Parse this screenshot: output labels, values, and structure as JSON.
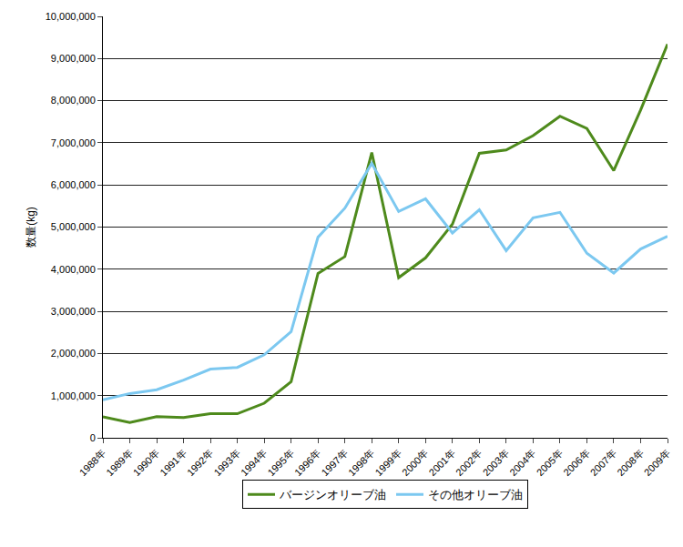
{
  "chart_data": {
    "type": "line",
    "y_label": "数量(kg)",
    "categories": [
      "1988年",
      "1989年",
      "1990年",
      "1991年",
      "1992年",
      "1993年",
      "1994年",
      "1995年",
      "1996年",
      "1997年",
      "1998年",
      "1999年",
      "2000年",
      "2001年",
      "2002年",
      "2003年",
      "2004年",
      "2005年",
      "2006年",
      "2007年",
      "2008年",
      "2009年"
    ],
    "series": [
      {
        "name": "バージンオリーブ油",
        "color": "#4e8a1c",
        "values": [
          500000,
          360000,
          500000,
          480000,
          570000,
          570000,
          820000,
          1330000,
          3900000,
          4300000,
          6770000,
          3800000,
          4270000,
          5070000,
          6750000,
          6830000,
          7170000,
          7630000,
          7340000,
          6340000,
          7780000,
          9340000
        ]
      },
      {
        "name": "その他オリーブ油",
        "color": "#7cc8f0",
        "values": [
          900000,
          1050000,
          1140000,
          1370000,
          1630000,
          1670000,
          1970000,
          2520000,
          4760000,
          5450000,
          6510000,
          5370000,
          5670000,
          4860000,
          5410000,
          4440000,
          5220000,
          5350000,
          4380000,
          3910000,
          4480000,
          4780000
        ]
      }
    ],
    "ylim": [
      0,
      10000000
    ],
    "yticks": [
      0,
      {
        "value": 1000000,
        "label": "1,000,000"
      },
      {
        "value": 2000000,
        "label": "2,000,000"
      },
      {
        "value": 3000000,
        "label": "3,000,000"
      },
      {
        "value": 4000000,
        "label": "4,000,000"
      },
      {
        "value": 5000000,
        "label": "5,000,000"
      },
      {
        "value": 6000000,
        "label": "6,000,000"
      },
      {
        "value": 7000000,
        "label": "7,000,000"
      },
      {
        "value": 8000000,
        "label": "8,000,000"
      },
      {
        "value": 9000000,
        "label": "9,000,000"
      },
      {
        "value": 10000000,
        "label": "10,000,000"
      }
    ],
    "grid": true,
    "legend": "bottom"
  }
}
